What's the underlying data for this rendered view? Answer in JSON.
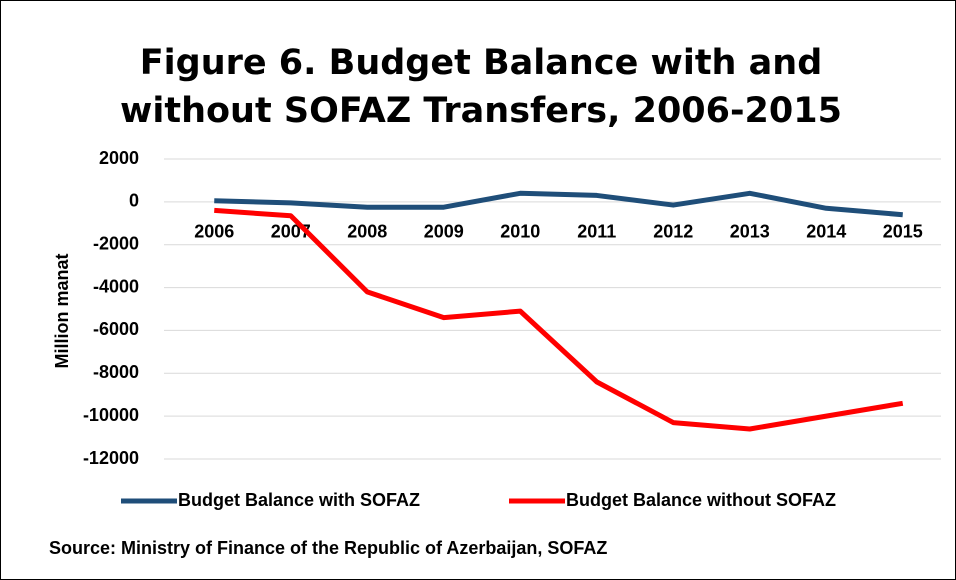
{
  "chart_data": {
    "type": "line",
    "title": "Figure 6. Budget Balance with and without SOFAZ Transfers, 2006-2015",
    "y_label": "Million manat",
    "categories": [
      "2006",
      "2007",
      "2008",
      "2009",
      "2010",
      "2011",
      "2012",
      "2013",
      "2014",
      "2015"
    ],
    "series": [
      {
        "name": "Budget Balance with SOFAZ",
        "color": "#1f4e79",
        "values": [
          50,
          -50,
          -250,
          -250,
          400,
          300,
          -150,
          400,
          -300,
          -600
        ]
      },
      {
        "name": "Budget Balance without SOFAZ",
        "color": "#ff0000",
        "values": [
          -400,
          -650,
          -4200,
          -5400,
          -5100,
          -8400,
          -10300,
          -10600,
          -10000,
          -9400
        ]
      }
    ],
    "ylim": [
      -12000,
      2000
    ],
    "yticks": [
      2000,
      0,
      -2000,
      -4000,
      -6000,
      -8000,
      -10000,
      -12000
    ],
    "grid": true,
    "legend": "bottom",
    "source": "Source: Ministry of Finance of the Republic of Azerbaijan, SOFAZ"
  }
}
